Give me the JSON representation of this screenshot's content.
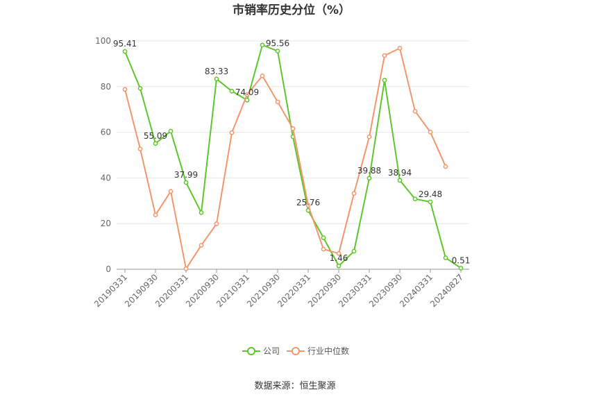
{
  "chart_data": {
    "type": "line",
    "title": "市销率历史分位（%）",
    "source": "数据来源：恒生聚源",
    "ylim": [
      0,
      100
    ],
    "yticks": [
      0,
      20,
      40,
      60,
      80,
      100
    ],
    "x": [
      "20190331",
      "20190630",
      "20190930",
      "20191231",
      "20200331",
      "20200630",
      "20200930",
      "20201231",
      "20210331",
      "20210630",
      "20210930",
      "20211231",
      "20220331",
      "20220630",
      "20220930",
      "20221231",
      "20230331",
      "20230630",
      "20230930",
      "20231231",
      "20240331",
      "20240630",
      "20240827"
    ],
    "xtick_labels": [
      "20190331",
      "20190930",
      "20200331",
      "20200930",
      "20210331",
      "20210930",
      "20220331",
      "20220930",
      "20230331",
      "20230930",
      "20240331",
      "20240827"
    ],
    "legend_position": "bottom-center",
    "grid": true,
    "series": [
      {
        "name": "公司",
        "color": "#5cc72a",
        "values": [
          95.41,
          79.2,
          55.09,
          60.5,
          37.99,
          24.8,
          83.33,
          78.0,
          74.09,
          98.2,
          95.56,
          58.0,
          25.76,
          13.8,
          1.46,
          7.9,
          39.88,
          82.8,
          38.94,
          30.8,
          29.48,
          5.0,
          0.51
        ],
        "labels": {
          "0": "95.41",
          "2": "55.09",
          "4": "37.99",
          "6": "83.33",
          "8": "74.09",
          "10": "95.56",
          "12": "25.76",
          "14": "1.46",
          "16": "39.88",
          "18": "38.94",
          "20": "29.48",
          "22": "0.51"
        }
      },
      {
        "name": "行业中位数",
        "color": "#f5956a",
        "values": [
          78.8,
          52.7,
          23.8,
          34.1,
          0.2,
          10.5,
          19.9,
          59.8,
          76.5,
          84.7,
          73.3,
          61.6,
          28.0,
          8.8,
          6.9,
          33.2,
          58.0,
          93.6,
          96.8,
          69.2,
          60.1,
          45.0,
          null
        ],
        "labels": {}
      }
    ]
  }
}
